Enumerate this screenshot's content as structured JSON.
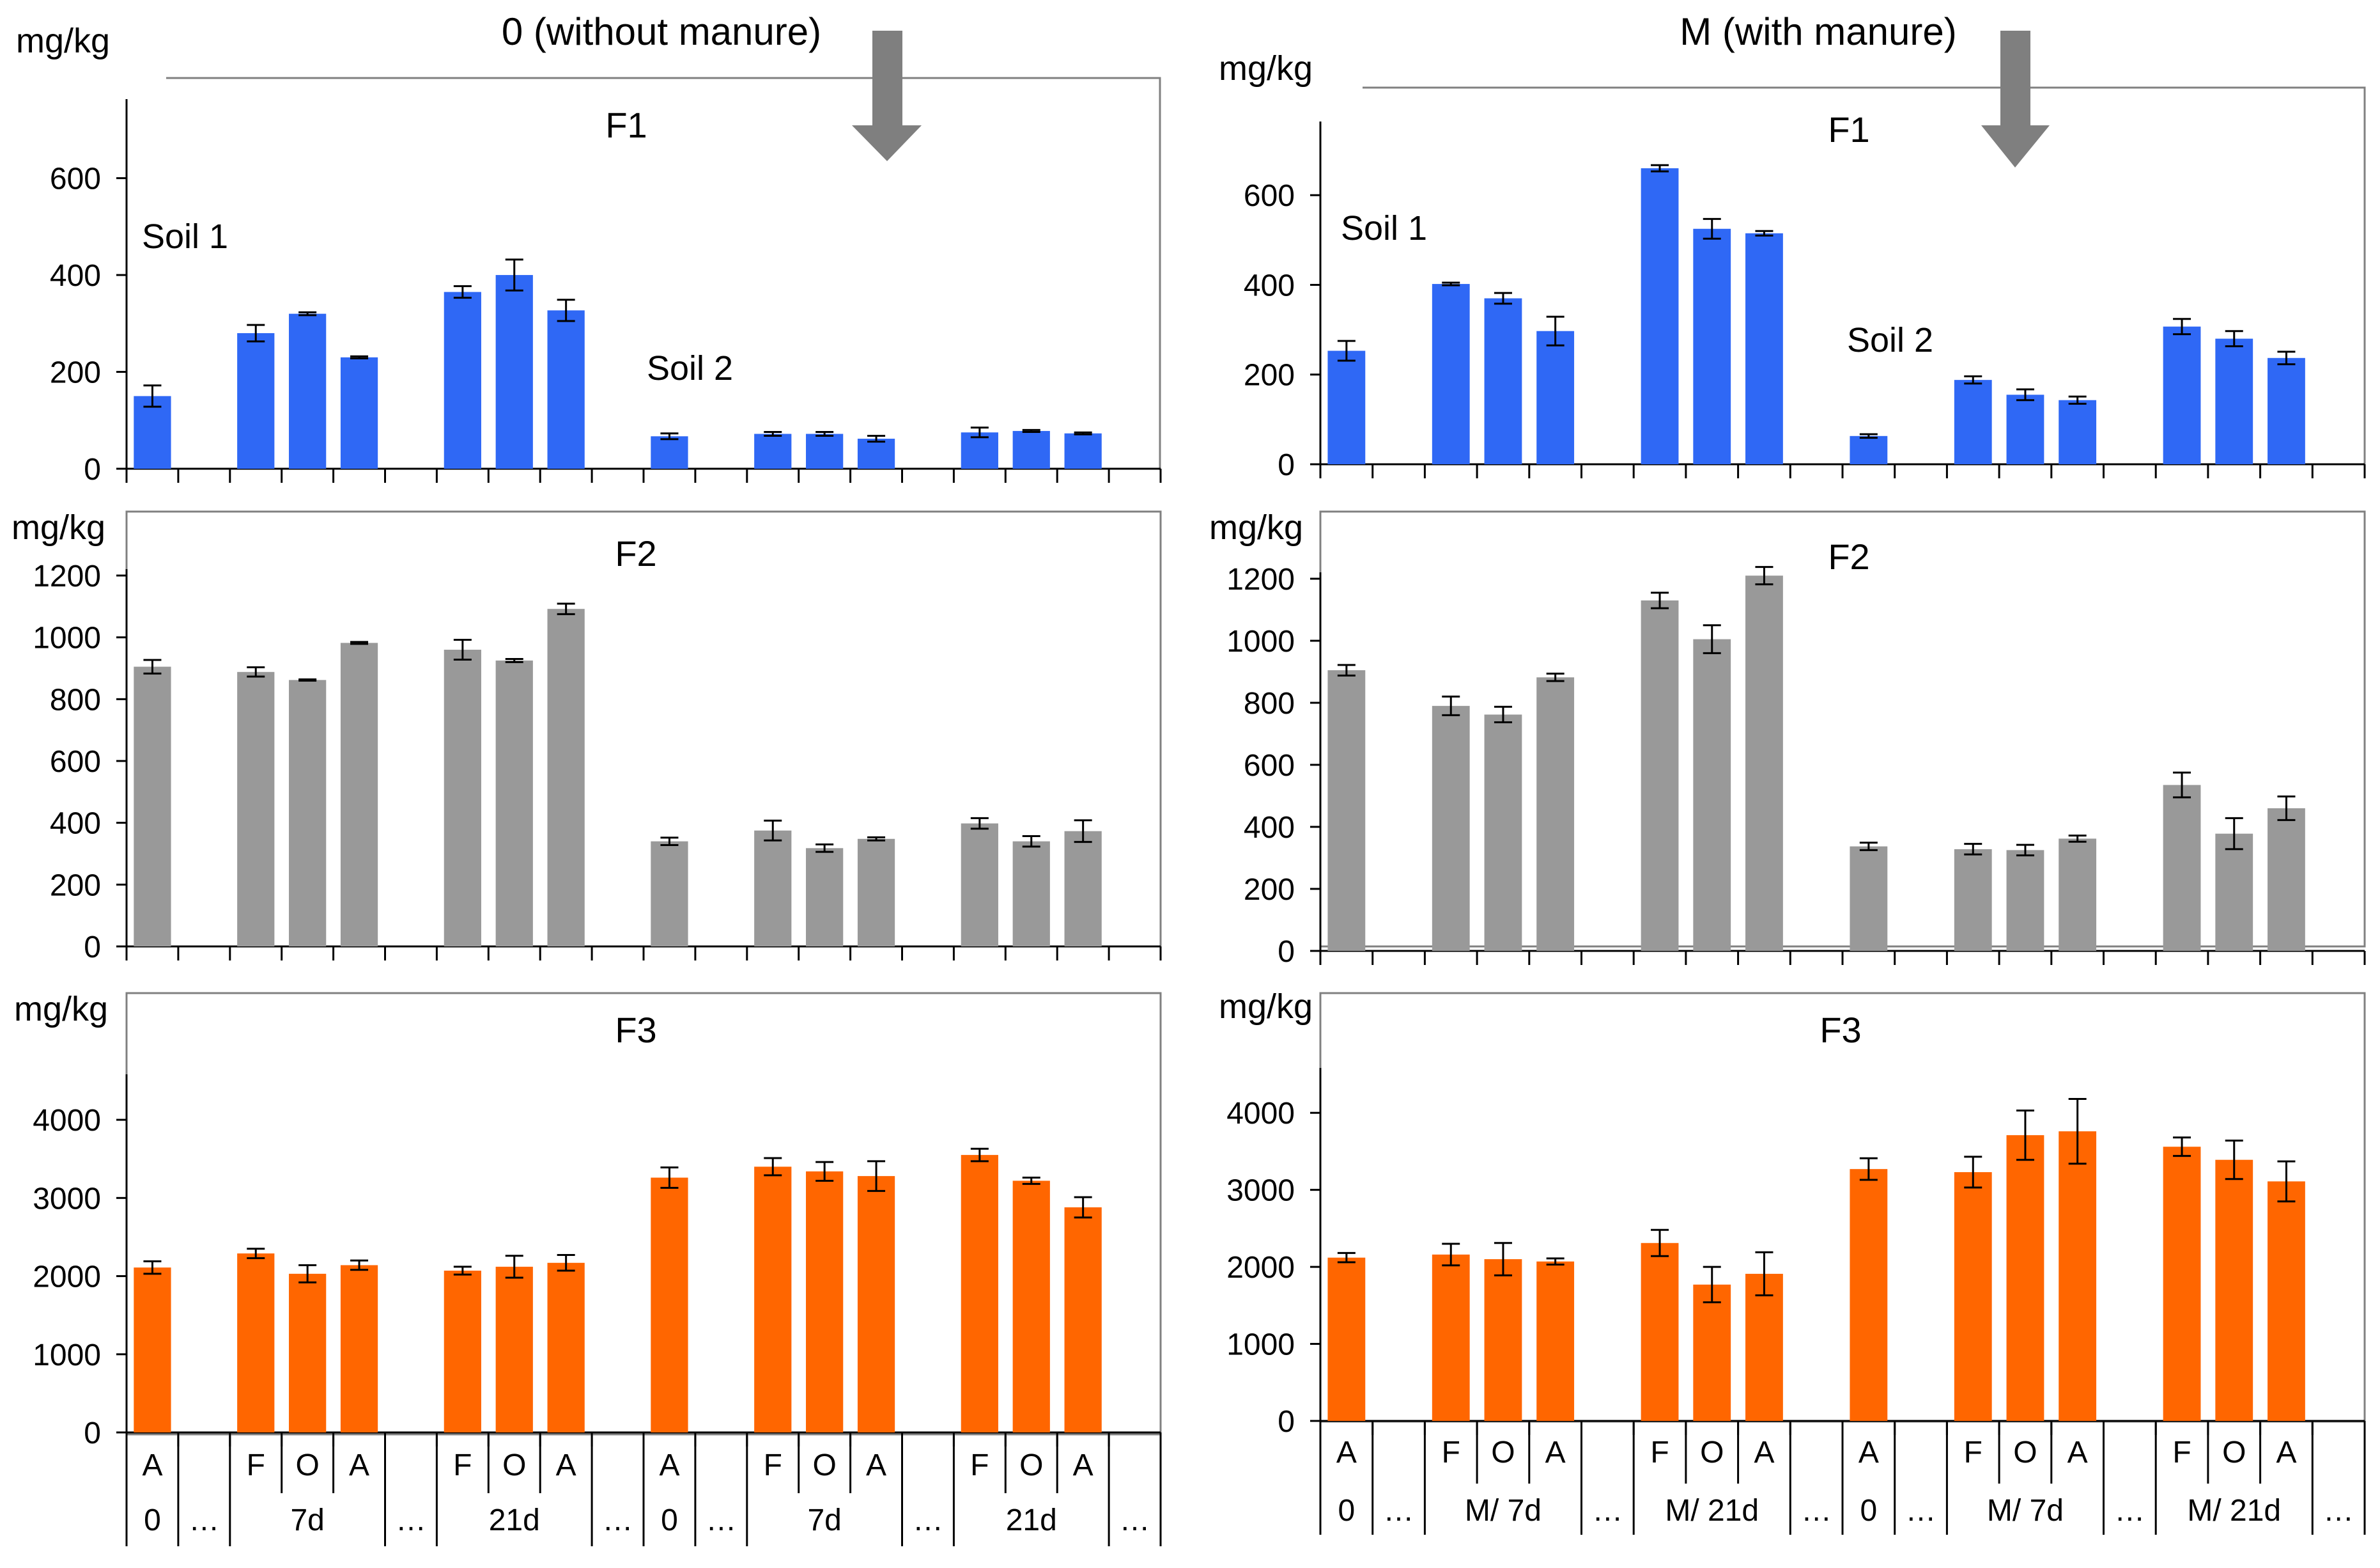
{
  "columns": [
    {
      "heading": "0 (without manure)"
    },
    {
      "heading": "M (with manure)"
    }
  ],
  "unit_label": "mg/kg",
  "soil_labels": {
    "soil1": "Soil 1",
    "soil2": "Soil 2"
  },
  "colors": {
    "F1": "#2f68f5",
    "F2": "#999999",
    "F3": "#ff6600",
    "arrow": "#7f7f7f"
  },
  "axis_labels": {
    "row1": [
      "A",
      "",
      "F",
      "O",
      "A",
      "",
      "F",
      "O",
      "A",
      "",
      "A",
      "",
      "F",
      "O",
      "A",
      "",
      "F",
      "O",
      "A",
      ""
    ],
    "row2_left": [
      "0",
      "…",
      "7d",
      "…",
      "21d",
      "…",
      "0",
      "…",
      "7d",
      "…",
      "21d",
      "…"
    ],
    "row2_right": [
      "0",
      "…",
      "M/ 7d",
      "…",
      "M/ 21d",
      "…",
      "0",
      "…",
      "M/ 7d",
      "…",
      "M/ 21d",
      "…"
    ]
  },
  "chart_data": [
    {
      "type": "bar",
      "id": "left-F1",
      "title": "F1",
      "ylabel": "mg/kg",
      "ylim": [
        0,
        750
      ],
      "yticks": [
        0,
        200,
        400,
        600
      ],
      "values": [
        150,
        null,
        280,
        320,
        230,
        null,
        365,
        400,
        327,
        null,
        67,
        null,
        72,
        72,
        62,
        null,
        75,
        78,
        73,
        null
      ],
      "errors": [
        22,
        0,
        17,
        3,
        2,
        0,
        12,
        32,
        22,
        0,
        6,
        0,
        4,
        4,
        6,
        0,
        10,
        2,
        2,
        0
      ]
    },
    {
      "type": "bar",
      "id": "left-F2",
      "title": "F2",
      "ylabel": "mg/kg",
      "ylim": [
        0,
        1200
      ],
      "yticks": [
        0,
        200,
        400,
        600,
        800,
        1000,
        1200
      ],
      "values": [
        905,
        null,
        888,
        862,
        982,
        null,
        960,
        925,
        1092,
        null,
        340,
        null,
        375,
        318,
        348,
        null,
        398,
        340,
        373,
        null
      ],
      "errors": [
        22,
        0,
        15,
        2,
        3,
        0,
        32,
        5,
        17,
        0,
        12,
        0,
        32,
        12,
        5,
        0,
        17,
        17,
        35,
        0
      ]
    },
    {
      "type": "bar",
      "id": "left-F3",
      "title": "F3",
      "ylabel": "mg/kg",
      "ylim": [
        0,
        4500
      ],
      "yticks": [
        0,
        1000,
        2000,
        3000,
        4000
      ],
      "values": [
        2110,
        null,
        2290,
        2030,
        2140,
        null,
        2070,
        2120,
        2170,
        null,
        3260,
        null,
        3400,
        3340,
        3280,
        null,
        3550,
        3220,
        2880,
        null
      ],
      "errors": [
        80,
        0,
        60,
        110,
        60,
        0,
        50,
        140,
        100,
        0,
        130,
        0,
        110,
        120,
        190,
        0,
        80,
        40,
        130,
        0
      ]
    },
    {
      "type": "bar",
      "id": "right-F1",
      "title": "F1",
      "ylabel": "mg/kg",
      "ylim": [
        0,
        750
      ],
      "yticks": [
        0,
        200,
        400,
        600
      ],
      "values": [
        253,
        null,
        402,
        370,
        297,
        null,
        660,
        525,
        515,
        null,
        63,
        null,
        188,
        155,
        143,
        null,
        307,
        280,
        237,
        null
      ],
      "errors": [
        22,
        0,
        3,
        12,
        32,
        0,
        7,
        22,
        5,
        0,
        4,
        0,
        8,
        12,
        8,
        0,
        17,
        17,
        14,
        0
      ]
    },
    {
      "type": "bar",
      "id": "right-F2",
      "title": "F2",
      "ylabel": "mg/kg",
      "ylim": [
        0,
        1200
      ],
      "yticks": [
        0,
        200,
        400,
        600,
        800,
        1000,
        1200
      ],
      "values": [
        905,
        null,
        790,
        762,
        882,
        null,
        1130,
        1005,
        1210,
        null,
        337,
        null,
        328,
        325,
        362,
        null,
        535,
        378,
        460,
        null
      ],
      "errors": [
        17,
        0,
        30,
        25,
        12,
        0,
        25,
        45,
        28,
        0,
        12,
        0,
        17,
        17,
        10,
        0,
        40,
        50,
        38,
        0
      ]
    },
    {
      "type": "bar",
      "id": "right-F3",
      "title": "F3",
      "ylabel": "mg/kg",
      "ylim": [
        0,
        4500
      ],
      "yticks": [
        0,
        1000,
        2000,
        3000,
        4000
      ],
      "values": [
        2120,
        null,
        2160,
        2100,
        2070,
        null,
        2310,
        1770,
        1910,
        null,
        3270,
        null,
        3230,
        3710,
        3760,
        null,
        3560,
        3390,
        3110,
        null
      ],
      "errors": [
        60,
        0,
        140,
        210,
        40,
        0,
        170,
        230,
        280,
        0,
        140,
        0,
        200,
        320,
        420,
        0,
        120,
        250,
        260,
        0
      ]
    }
  ]
}
